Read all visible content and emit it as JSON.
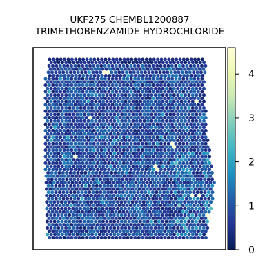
{
  "chart_data": {
    "type": "heatmap",
    "title": "UKF275 CHEMBL1200887",
    "subtitle": "TRIMETHOBENZAMIDE HYDROCHLORIDE",
    "xlabel": "",
    "ylabel": "",
    "colormap": "YlGnBu",
    "colorbar": {
      "min": 0,
      "max": 4.6,
      "ticks": [
        0,
        1,
        2,
        3,
        4
      ],
      "tick_labels": [
        "0",
        "1",
        "2",
        "3",
        "4"
      ]
    },
    "typical_value": 0.9,
    "max_value": 4.6,
    "grid": false
  },
  "colors": {
    "low": "#081d58",
    "mid": "#2059a8",
    "high": "#ffffd9",
    "frame": "#000000"
  }
}
